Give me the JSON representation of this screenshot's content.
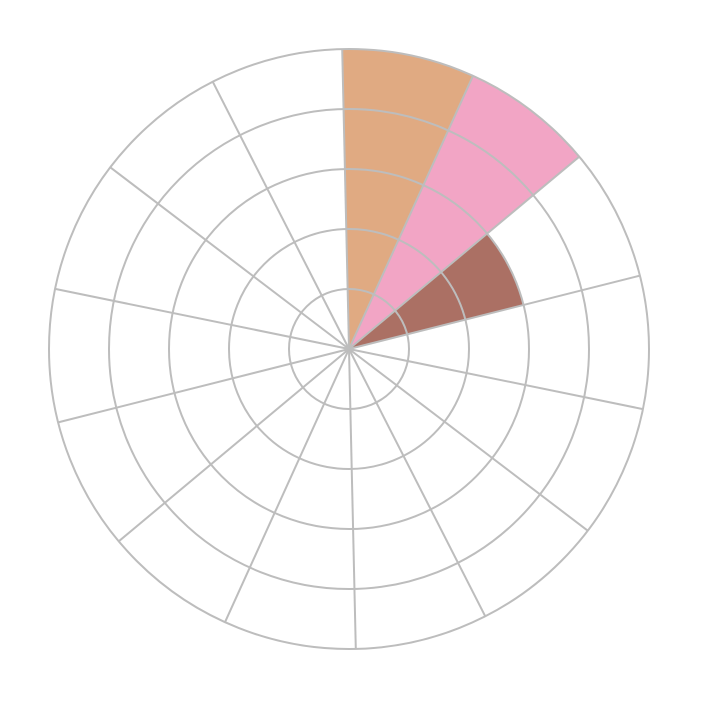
{
  "chart_data": {
    "type": "polar-bar",
    "sector_count": 14,
    "rlim": [
      0,
      5
    ],
    "ring_values": [
      1,
      2,
      3,
      4,
      5
    ],
    "grid": true,
    "grid_color": "#bdbdbd",
    "values": [
      5,
      5,
      3,
      0,
      0,
      0,
      0,
      0,
      0,
      0,
      0,
      0,
      0,
      0
    ],
    "colors": [
      "#e0aa82",
      "#f2a5c5",
      "#ab7064",
      null,
      null,
      null,
      null,
      null,
      null,
      null,
      null,
      null,
      null,
      null
    ]
  }
}
